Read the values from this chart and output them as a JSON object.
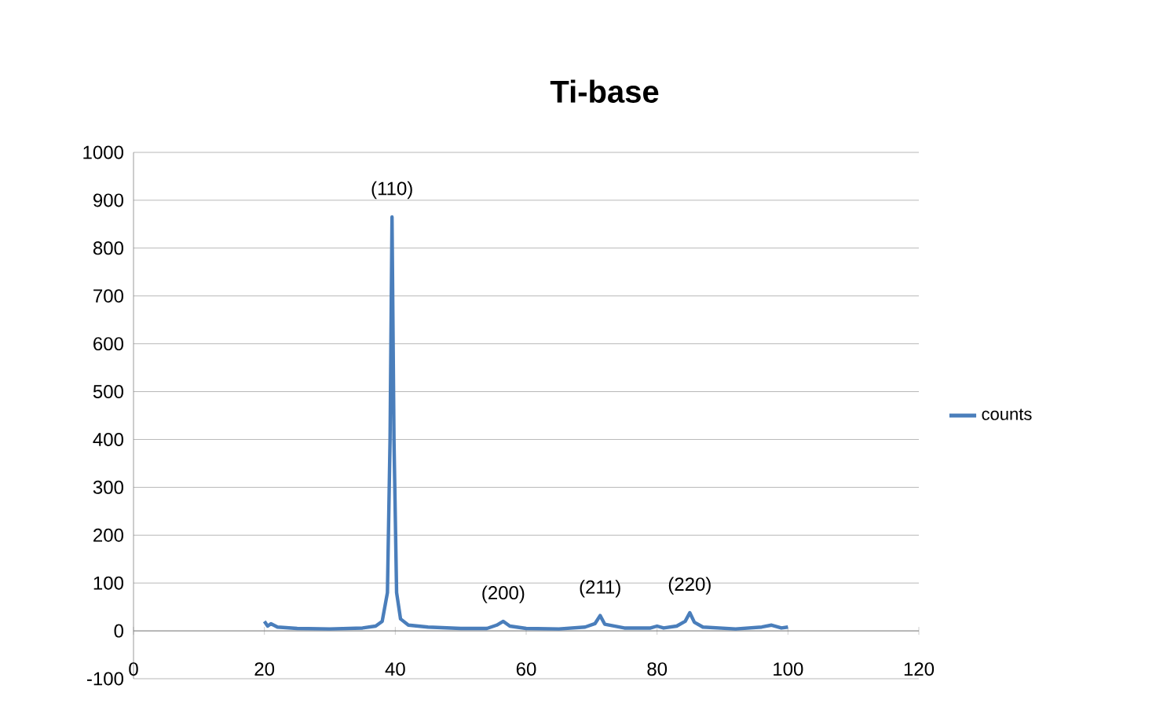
{
  "chart_data": {
    "type": "line",
    "title": "Ti-base",
    "series": [
      {
        "name": "counts",
        "color": "#4a7ebb",
        "x": [
          20,
          20.5,
          21,
          22,
          25,
          30,
          35,
          37,
          38,
          38.8,
          39.2,
          39.5,
          39.8,
          40.2,
          40.8,
          42,
          45,
          50,
          54,
          55.5,
          56.5,
          57.5,
          60,
          65,
          69,
          70.5,
          71.3,
          72,
          75,
          79,
          80,
          81,
          83,
          84.3,
          85,
          85.7,
          87,
          92,
          96,
          97.5,
          99,
          100
        ],
        "values": [
          20,
          10,
          15,
          8,
          5,
          4,
          6,
          10,
          20,
          80,
          400,
          865,
          400,
          80,
          25,
          12,
          8,
          5,
          5,
          12,
          20,
          10,
          5,
          4,
          8,
          15,
          32,
          14,
          6,
          6,
          10,
          6,
          10,
          20,
          38,
          18,
          8,
          4,
          8,
          12,
          6,
          8
        ]
      }
    ],
    "annotations": [
      {
        "text": "(110)",
        "x": 39.5,
        "y": 865
      },
      {
        "text": "(200)",
        "x": 56.5,
        "y": 20
      },
      {
        "text": "(211)",
        "x": 71.3,
        "y": 32
      },
      {
        "text": "(220)",
        "x": 85,
        "y": 38
      }
    ],
    "xlim": [
      0,
      120
    ],
    "xticks": [
      0,
      20,
      40,
      60,
      80,
      100,
      120
    ],
    "ylim": [
      -100,
      1000
    ],
    "yticks": [
      -100,
      0,
      100,
      200,
      300,
      400,
      500,
      600,
      700,
      800,
      900,
      1000
    ],
    "grid": "y",
    "legend": "right",
    "marker": "none",
    "line_style": "solid"
  }
}
